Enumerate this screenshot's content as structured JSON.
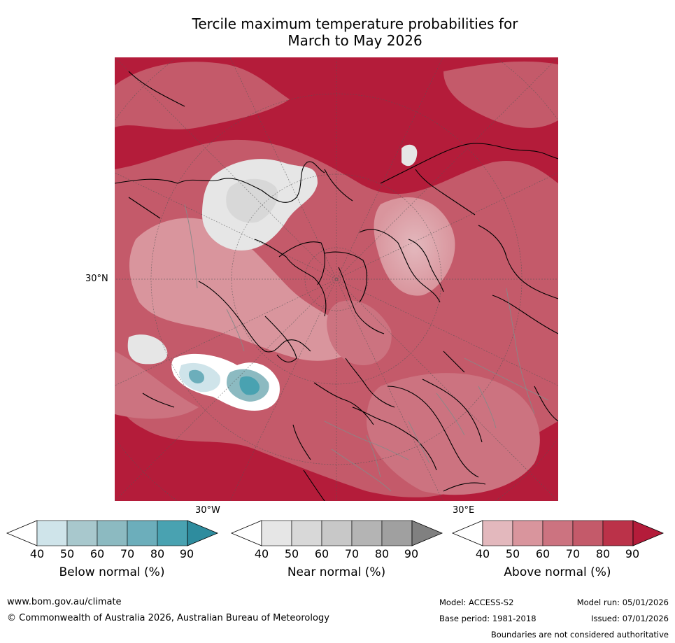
{
  "title_line1": "Tercile maximum temperature probabilities for",
  "title_line2": "March to May 2026",
  "map": {
    "projection": "north-polar-stereographic",
    "latitude_label": "30°N",
    "longitude_labels": [
      "30°W",
      "30°E"
    ],
    "grid": true
  },
  "legends": [
    {
      "title": "Below normal (%)",
      "ticks": [
        "40",
        "50",
        "60",
        "70",
        "80",
        "90"
      ],
      "colors": [
        "#ffffff",
        "#cfe4ea",
        "#a8c8cd",
        "#8cbac1",
        "#6caebb",
        "#49a2b1",
        "#2e8c9e"
      ]
    },
    {
      "title": "Near normal (%)",
      "ticks": [
        "40",
        "50",
        "60",
        "70",
        "80",
        "90"
      ],
      "colors": [
        "#ffffff",
        "#e6e6e6",
        "#d8d8d8",
        "#c8c8c8",
        "#b4b4b4",
        "#a0a0a0",
        "#808080"
      ]
    },
    {
      "title": "Above normal (%)",
      "ticks": [
        "40",
        "50",
        "60",
        "70",
        "80",
        "90"
      ],
      "colors": [
        "#ffffff",
        "#e3b8bd",
        "#d9959d",
        "#cc7380",
        "#c45a6a",
        "#bb3249",
        "#b41c3a"
      ]
    }
  ],
  "footer": {
    "website": "www.bom.gov.au/climate",
    "copyright": "© Commonwealth of Australia 2026, Australian Bureau of Meteorology",
    "model": "Model: ACCESS-S2",
    "model_run": "Model run: 05/01/2026",
    "base_period": "Base period: 1981-2018",
    "issued": "Issued: 07/01/2026",
    "disclaimer": "Boundaries are not considered authoritative"
  }
}
